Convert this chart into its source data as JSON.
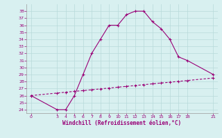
{
  "xlabel": "Windchill (Refroidissement éolien,°C)",
  "x_upper": [
    0,
    3,
    4,
    5,
    6,
    7,
    8,
    9,
    10,
    11,
    12,
    13,
    14,
    15,
    16,
    17,
    18,
    21
  ],
  "y_upper": [
    26,
    24,
    24,
    26,
    29,
    32,
    34,
    36,
    36,
    37.5,
    38,
    38,
    36.5,
    35.5,
    34,
    31.5,
    31,
    29
  ],
  "x_lower": [
    0,
    3,
    4,
    5,
    6,
    7,
    8,
    9,
    10,
    11,
    12,
    13,
    14,
    15,
    16,
    17,
    18,
    21
  ],
  "y_lower": [
    26,
    26.36,
    26.48,
    26.6,
    26.71,
    26.83,
    26.95,
    27.07,
    27.19,
    27.31,
    27.43,
    27.55,
    27.67,
    27.79,
    27.9,
    28.02,
    28.14,
    28.5
  ],
  "line_color": "#990077",
  "bg_color": "#d8f0f0",
  "grid_color": "#b8dada",
  "ylim": [
    23.5,
    39
  ],
  "xlim": [
    -0.5,
    21.5
  ],
  "yticks": [
    24,
    25,
    26,
    27,
    28,
    29,
    30,
    31,
    32,
    33,
    34,
    35,
    36,
    37,
    38
  ],
  "xticks": [
    0,
    3,
    4,
    5,
    6,
    7,
    8,
    9,
    10,
    11,
    12,
    13,
    14,
    15,
    16,
    17,
    18,
    21
  ]
}
